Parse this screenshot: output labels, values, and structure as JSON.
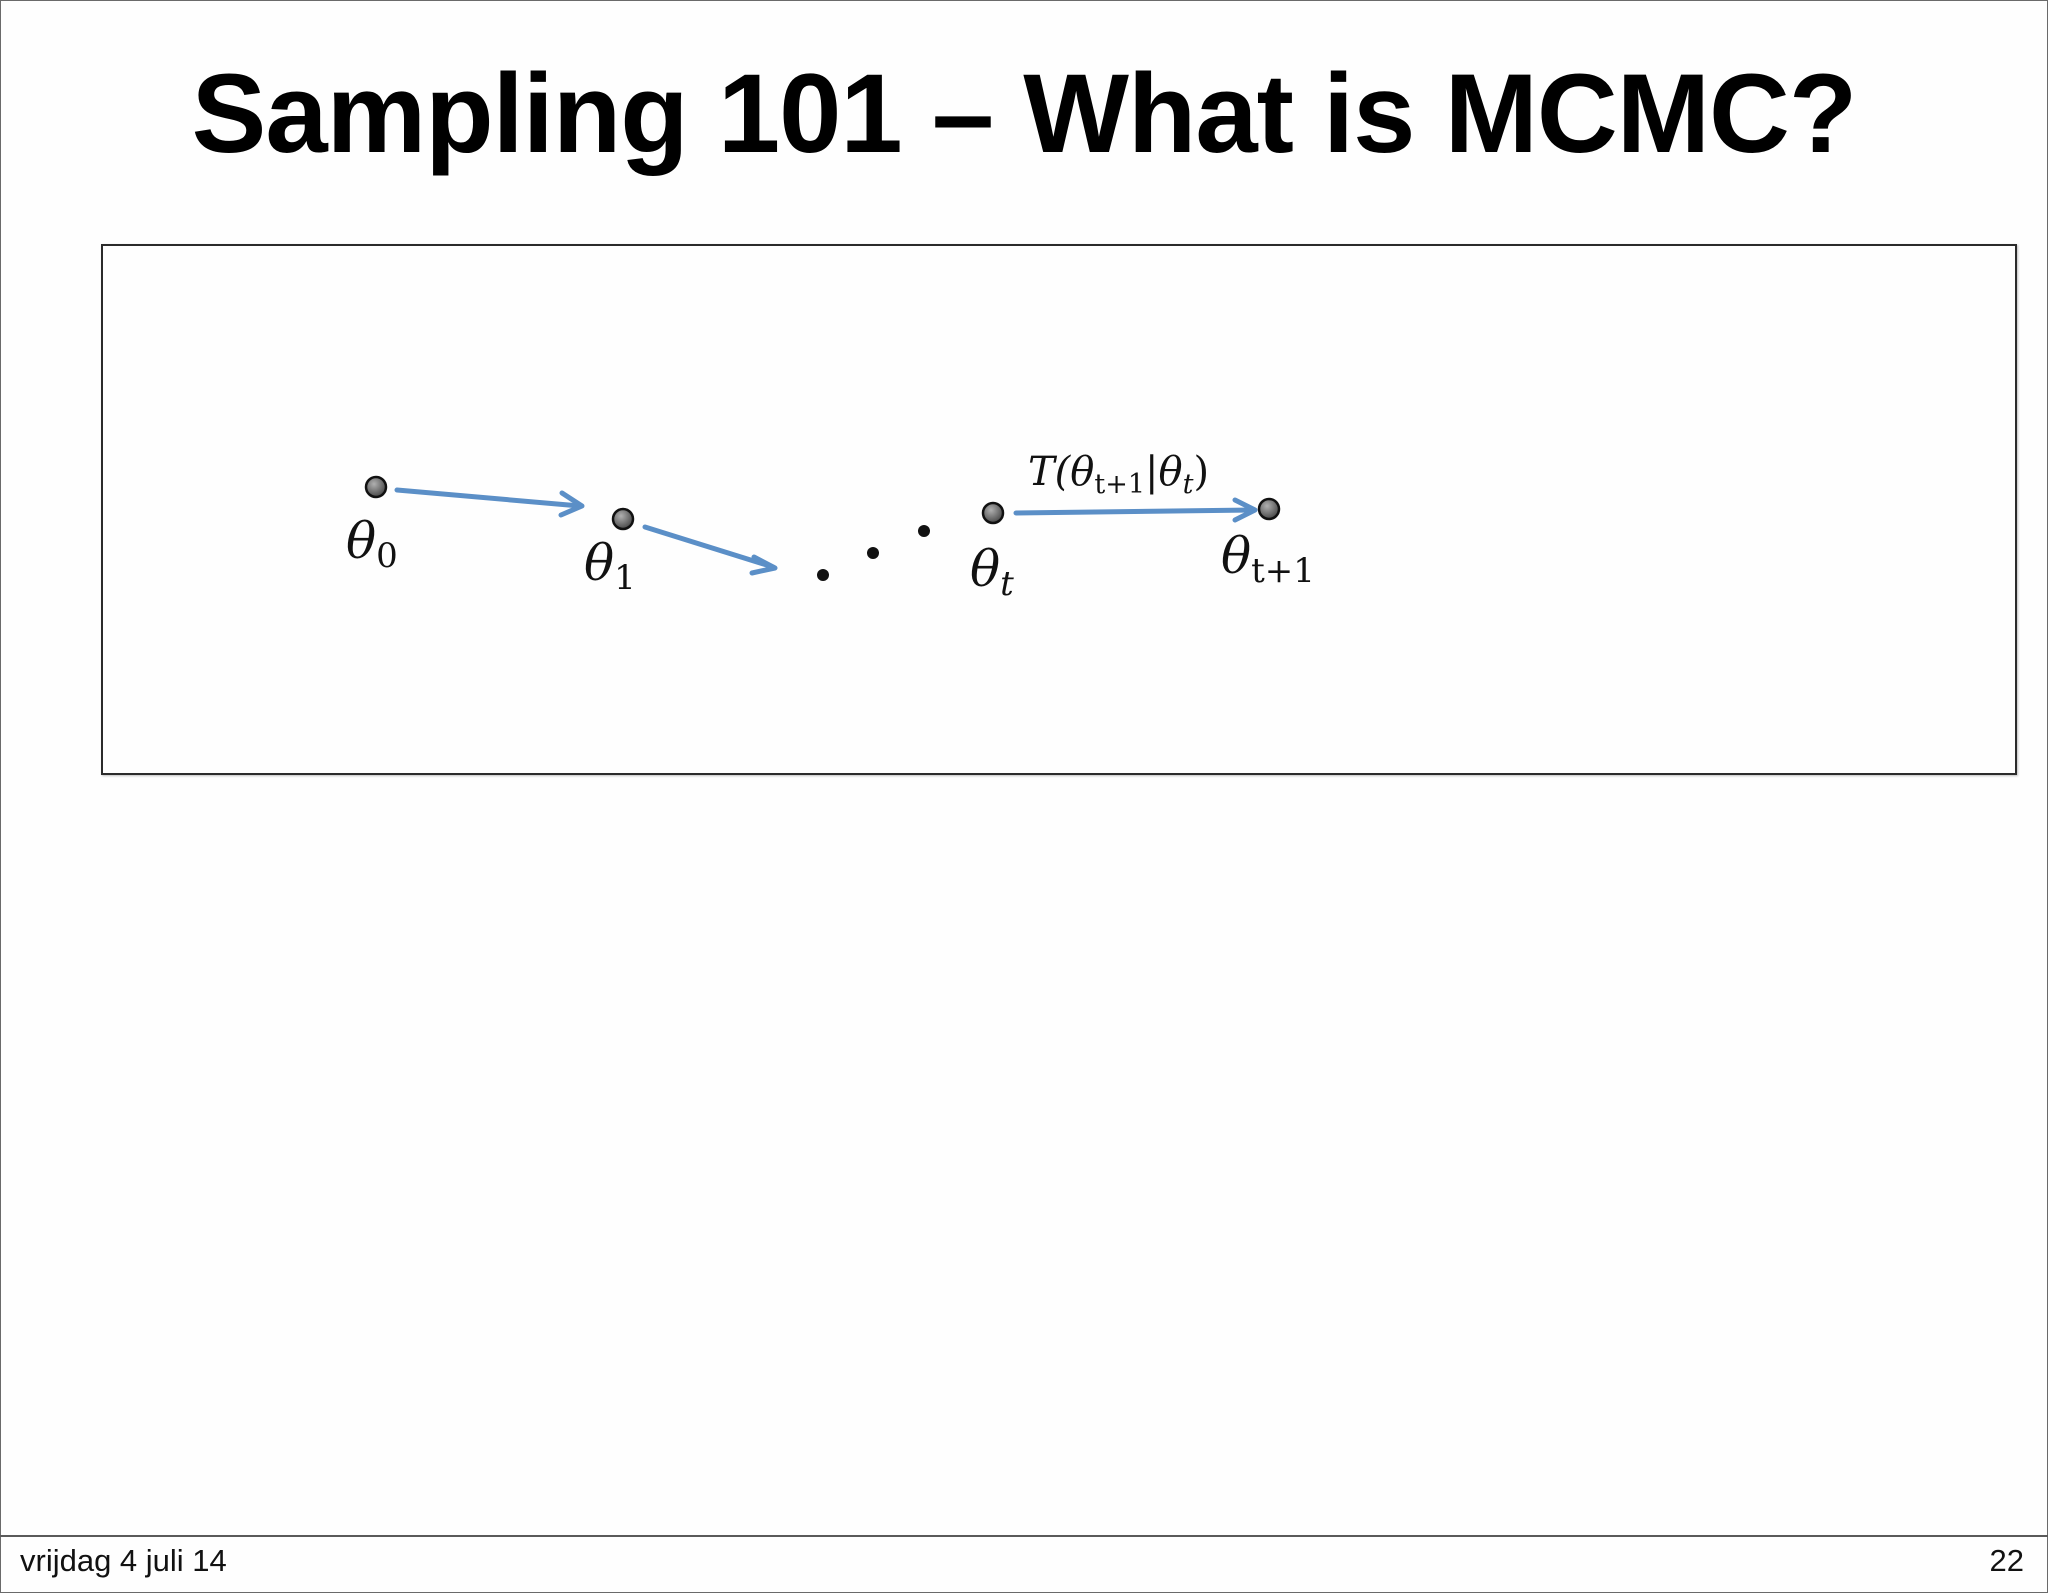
{
  "slide": {
    "title": "Sampling 101 – What is MCMC?",
    "footer_date": "vrijdag 4 juli 14",
    "page_number": "22"
  },
  "diagram": {
    "nodes": [
      {
        "id": "n0",
        "symbol": "θ",
        "subscript": "0"
      },
      {
        "id": "n1",
        "symbol": "θ",
        "subscript": "1"
      },
      {
        "id": "nt",
        "symbol": "θ",
        "subscript": "t"
      },
      {
        "id": "nt1",
        "symbol": "θ",
        "subscript": "t+1"
      }
    ],
    "transition_label": {
      "prefix": "T(",
      "symbol_a": "θ",
      "sub_a": "t+1",
      "separator": "|",
      "symbol_b": "θ",
      "sub_b": "t",
      "suffix": ")"
    },
    "colors": {
      "arrow": "#5b8fc7",
      "node_fill": "#6a6a6a",
      "node_stroke": "#111111",
      "ellipsis": "#111111"
    }
  }
}
